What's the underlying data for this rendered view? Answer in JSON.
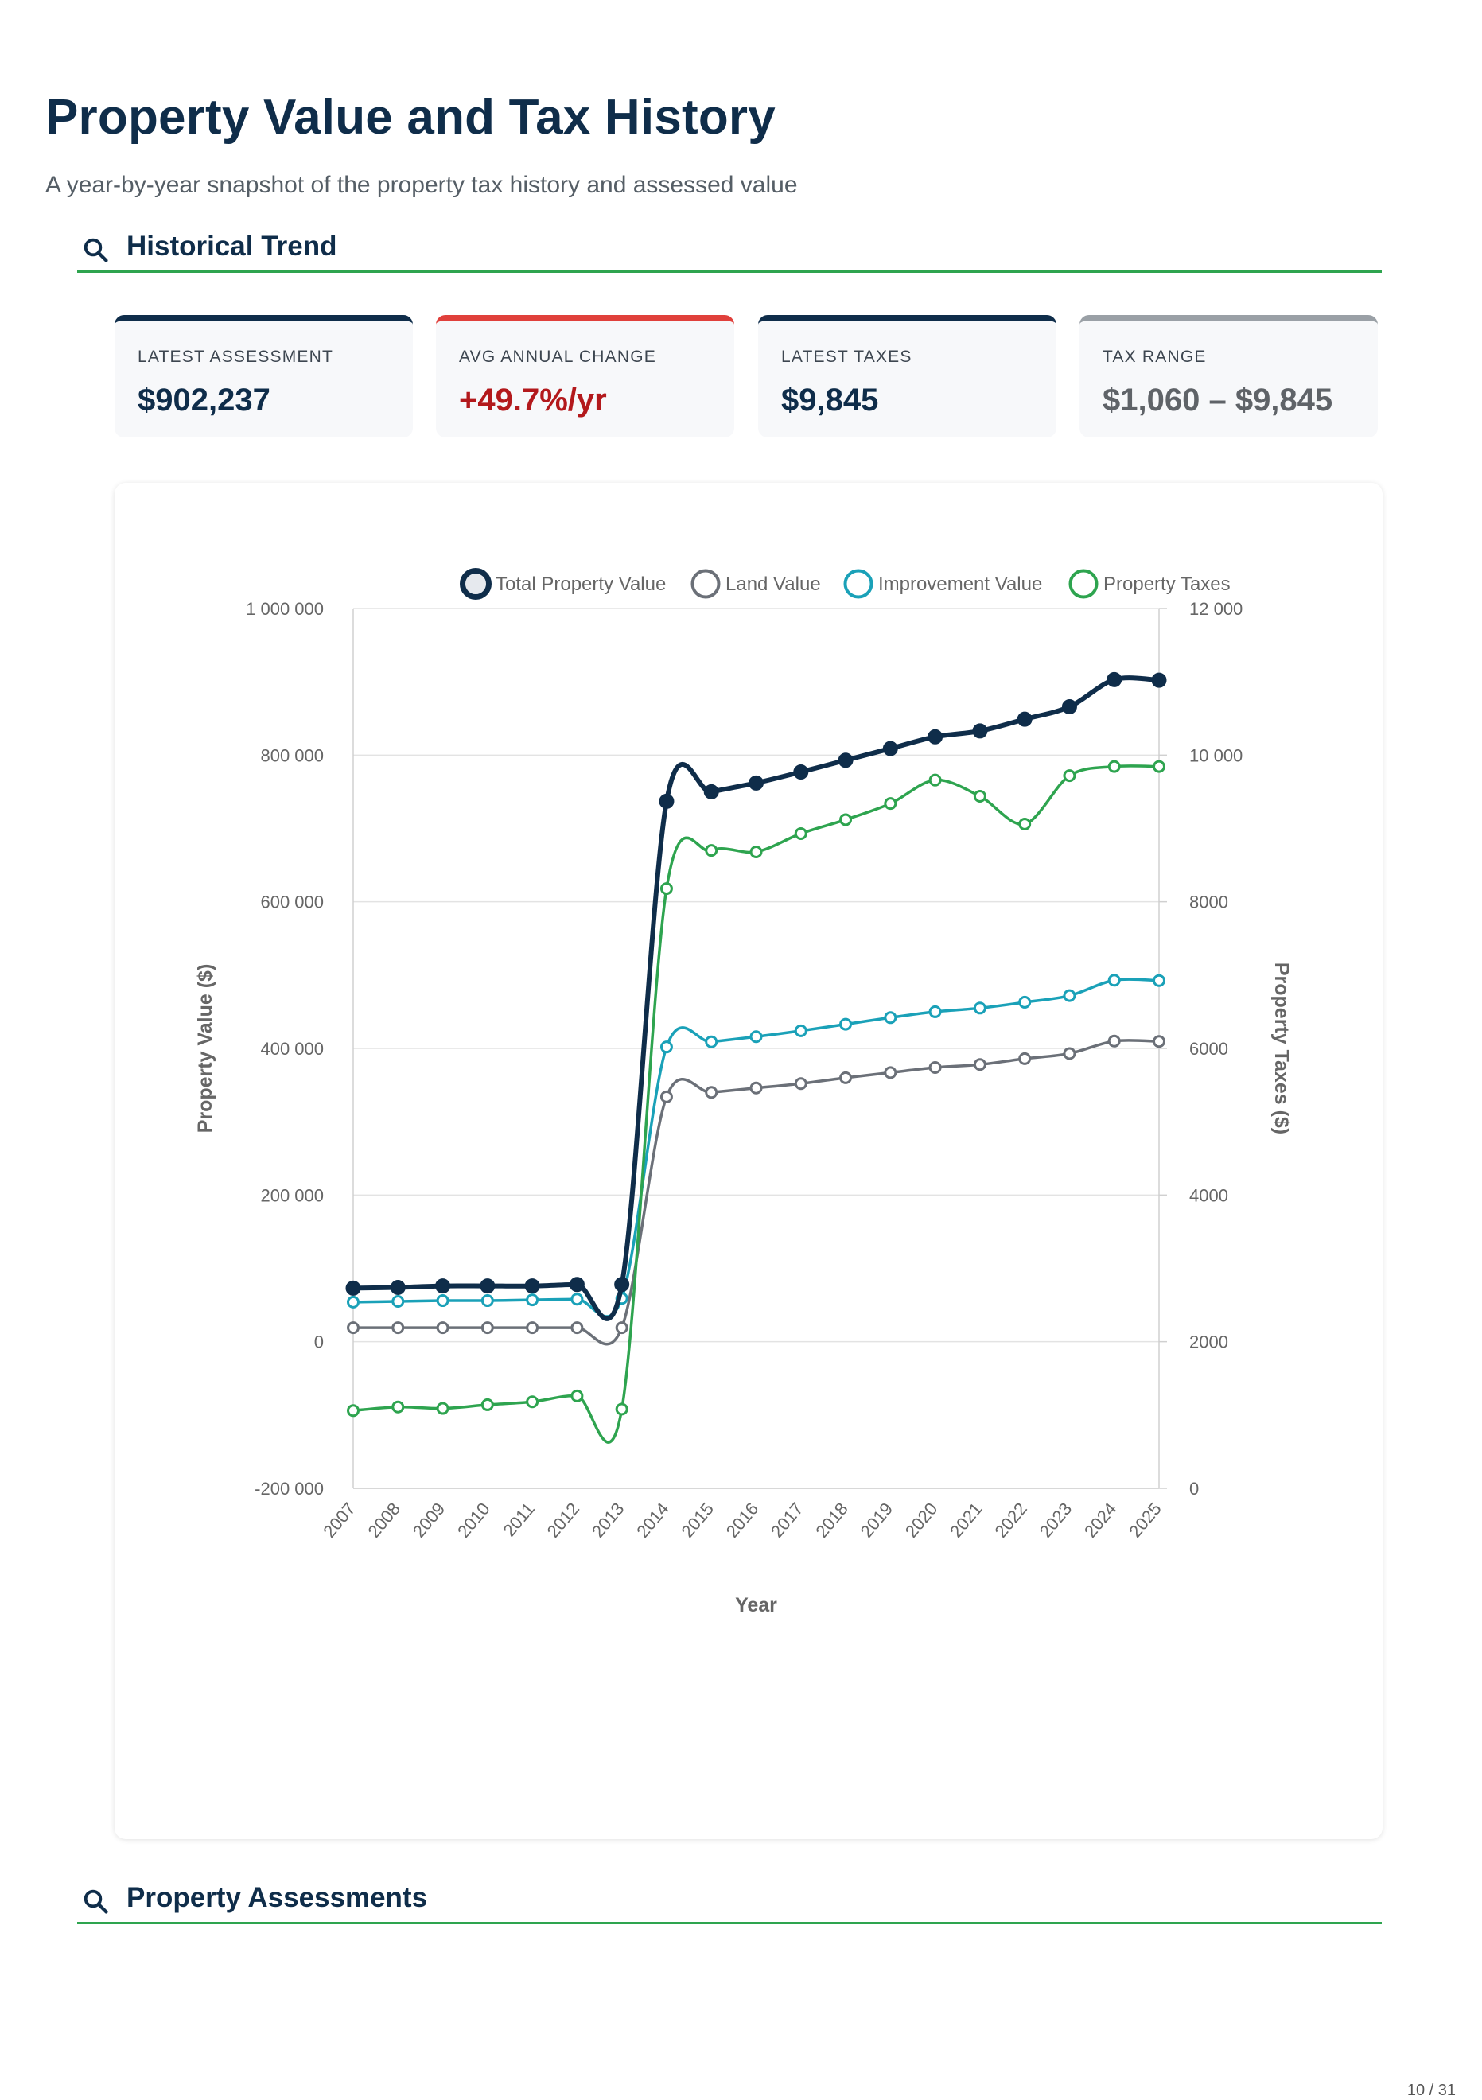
{
  "page": {
    "title": "Property Value and Tax History",
    "subtitle": "A year-by-year snapshot of the property tax history and assessed value",
    "page_number": "10 / 31"
  },
  "sections": {
    "historical_trend": "Historical Trend",
    "property_assessments": "Property Assessments"
  },
  "kpis": [
    {
      "label": "LATEST ASSESSMENT",
      "value": "$902,237",
      "color": "#0f2d4a",
      "accent": "#0f2d4a"
    },
    {
      "label": "AVG ANNUAL CHANGE",
      "value": "+49.7%/yr",
      "color": "#b3191c",
      "accent": "#e0403b"
    },
    {
      "label": "LATEST TAXES",
      "value": "$9,845",
      "color": "#0f2d4a",
      "accent": "#0f2d4a"
    },
    {
      "label": "TAX RANGE",
      "value": "$1,060 – $9,845",
      "color": "#5f6368",
      "accent": "#9aa0a6"
    }
  ],
  "chart_data": {
    "type": "line",
    "xlabel": "Year",
    "ylabel": "Property Value ($)",
    "y2label": "Property Taxes ($)",
    "categories": [
      "2007",
      "2008",
      "2009",
      "2010",
      "2011",
      "2012",
      "2013",
      "2014",
      "2015",
      "2016",
      "2017",
      "2018",
      "2019",
      "2020",
      "2021",
      "2022",
      "2023",
      "2024",
      "2025"
    ],
    "ylim": [
      -200000,
      1000000
    ],
    "y_ticks": [
      -200000,
      0,
      200000,
      400000,
      600000,
      800000,
      1000000
    ],
    "y_tick_labels": [
      "-200 000",
      "0",
      "200 000",
      "400 000",
      "600 000",
      "800 000",
      "1 000 000"
    ],
    "y2lim": [
      0,
      12000
    ],
    "y2_ticks": [
      0,
      2000,
      4000,
      6000,
      8000,
      10000,
      12000
    ],
    "y2_tick_labels": [
      "0",
      "2000",
      "4000",
      "6000",
      "8000",
      "10 000",
      "12 000"
    ],
    "legend_position": "top",
    "grid": true,
    "series": [
      {
        "name": "Total Property Value",
        "axis": "left",
        "color": "#0f2d4a",
        "values": [
          73000,
          74000,
          76000,
          76000,
          76000,
          78000,
          78000,
          737000,
          750000,
          762000,
          777000,
          793000,
          809000,
          825000,
          833000,
          849000,
          866000,
          903000,
          902237
        ]
      },
      {
        "name": "Land Value",
        "axis": "left",
        "color": "#6b7078",
        "values": [
          19000,
          19000,
          19000,
          19000,
          19000,
          19000,
          19000,
          334000,
          340000,
          346000,
          352000,
          360000,
          367000,
          374000,
          378000,
          386000,
          393000,
          410000,
          409500
        ]
      },
      {
        "name": "Improvement Value",
        "axis": "left",
        "color": "#1aa1b8",
        "values": [
          54000,
          55000,
          56000,
          56000,
          57000,
          58000,
          59000,
          402000,
          409000,
          416000,
          424000,
          433000,
          442000,
          450000,
          455000,
          463000,
          472000,
          493000,
          492500
        ]
      },
      {
        "name": "Property Taxes",
        "axis": "right",
        "color": "#2ea44f",
        "values": [
          1060,
          1110,
          1090,
          1140,
          1180,
          1260,
          1080,
          8180,
          8700,
          8680,
          8930,
          9120,
          9340,
          9660,
          9440,
          9060,
          9720,
          9845,
          9845
        ]
      }
    ]
  }
}
